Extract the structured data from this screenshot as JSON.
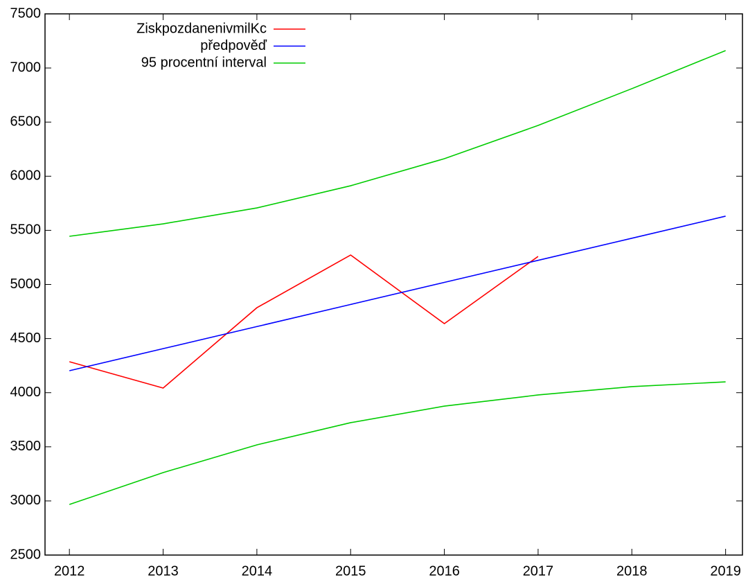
{
  "chart_data": {
    "type": "line",
    "x": [
      2012,
      2013,
      2014,
      2015,
      2016,
      2017,
      2018,
      2019
    ],
    "series": [
      {
        "name": "ZiskpozdanenivmilKc",
        "color": "#ff0000",
        "values": [
          4286,
          4043,
          4785,
          5272,
          4638,
          5259,
          null,
          null
        ]
      },
      {
        "name": "předpověď",
        "color": "#0000ff",
        "values": [
          4203,
          4407,
          4611,
          4815,
          5019,
          5223,
          5427,
          5631
        ]
      },
      {
        "name": "95 procentní interval",
        "color": "#00cc00",
        "upper": [
          5445,
          5560,
          5707,
          5912,
          6162,
          6469,
          6809,
          7161
        ],
        "lower": [
          2967,
          3262,
          3518,
          3723,
          3876,
          3979,
          4056,
          4100
        ]
      }
    ],
    "xlim": [
      2011.74,
      2019.18
    ],
    "xticks": [
      2012,
      2013,
      2014,
      2015,
      2016,
      2017,
      2018,
      2019
    ],
    "ylim": [
      2500,
      7500
    ],
    "yticks": [
      2500,
      3000,
      3500,
      4000,
      4500,
      5000,
      5500,
      6000,
      6500,
      7000,
      7500
    ],
    "legend": "upper-left"
  }
}
